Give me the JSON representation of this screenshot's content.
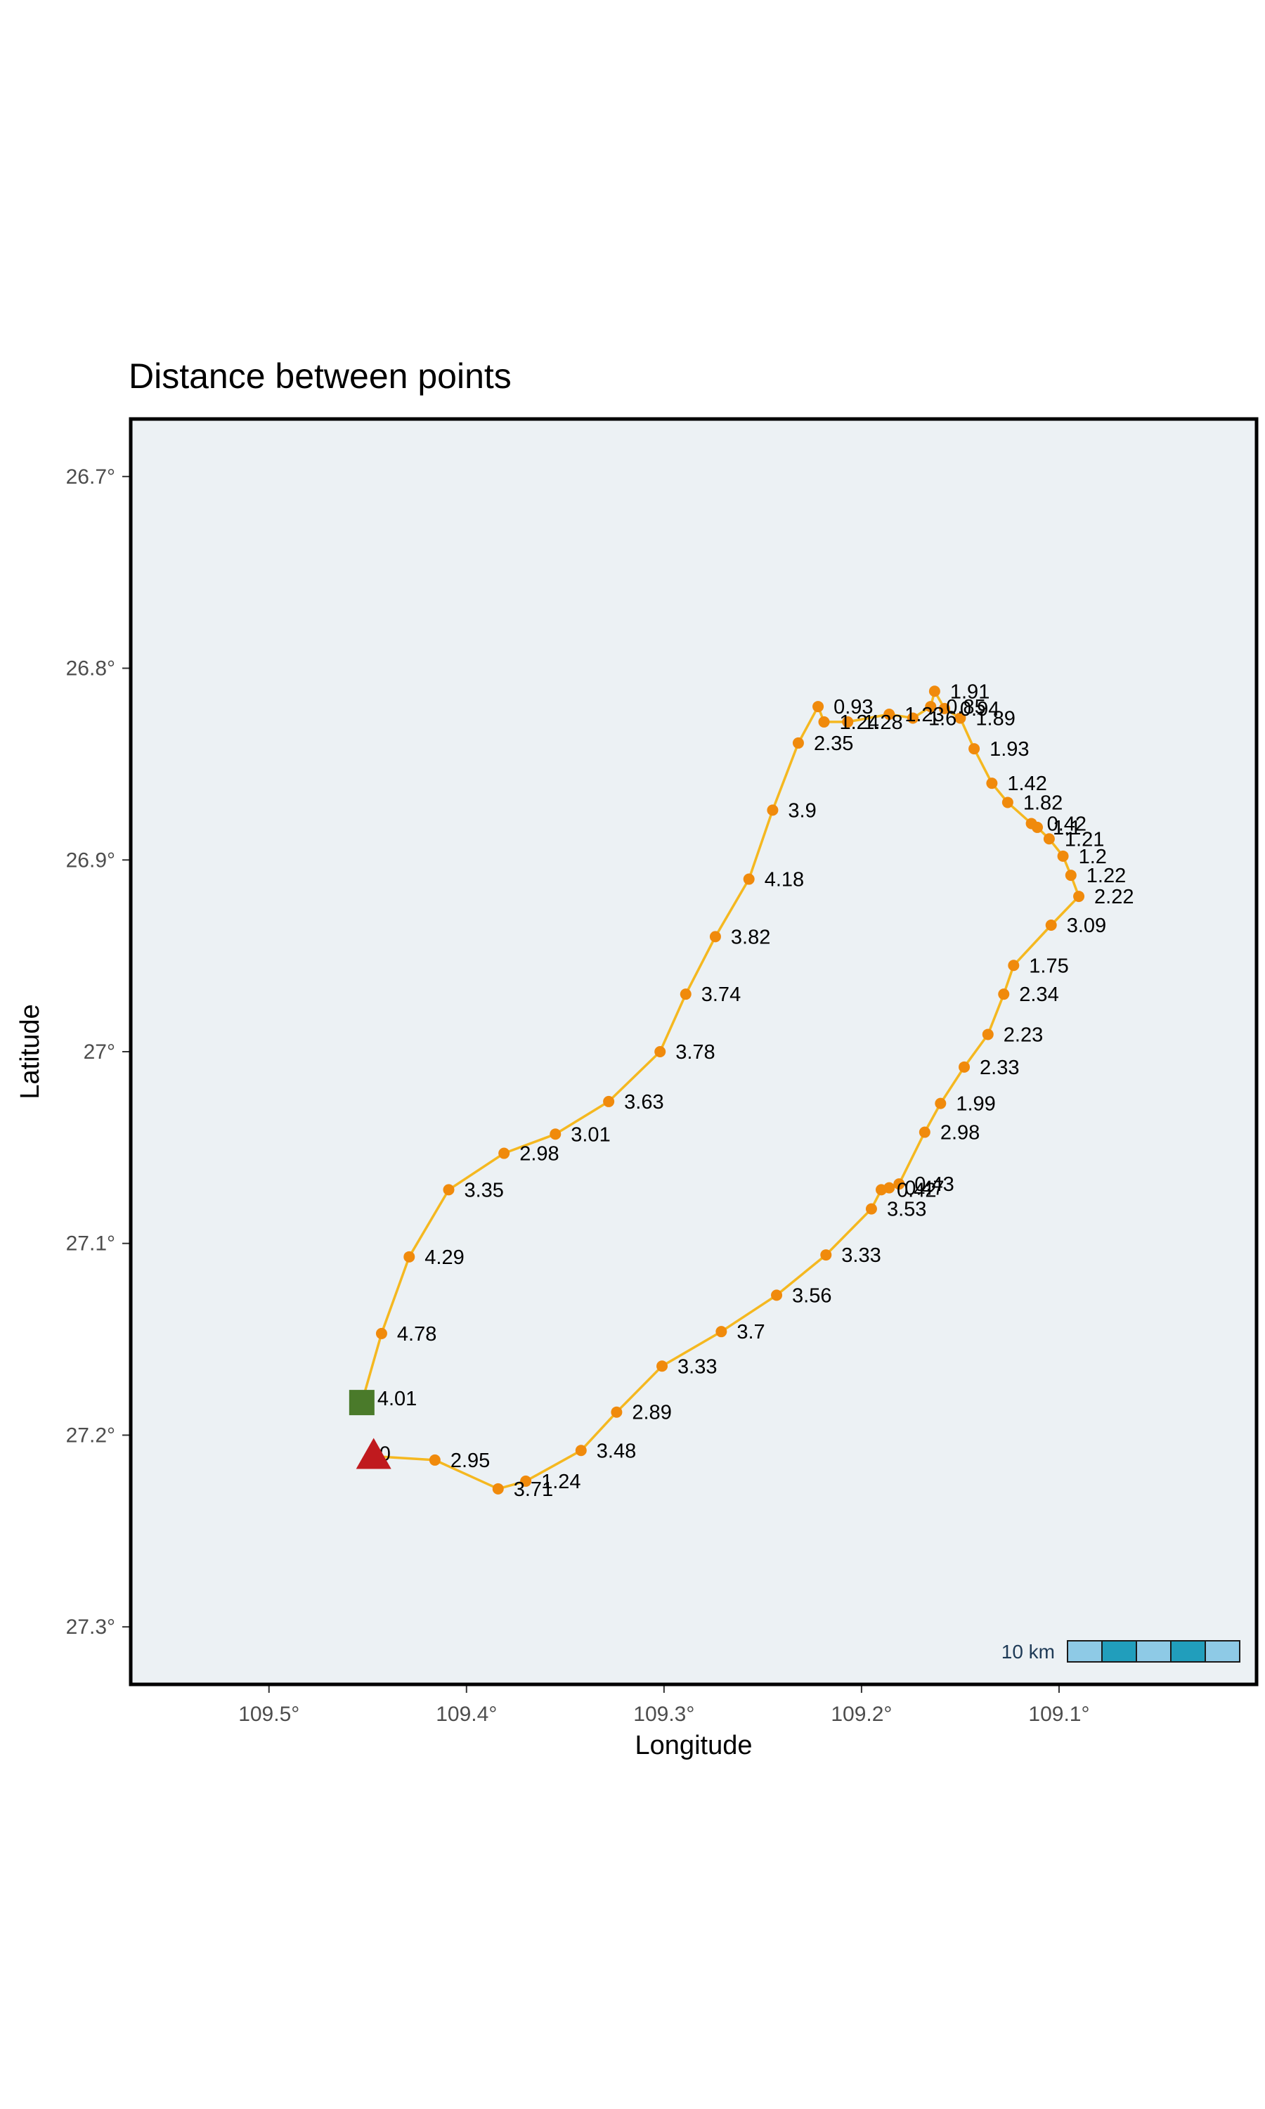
{
  "chart_data": {
    "type": "line",
    "title": "Distance between points",
    "xlabel": "Longitude",
    "ylabel": "Latitude",
    "xlim": [
      109.57,
      109.0
    ],
    "ylim": [
      26.67,
      27.33
    ],
    "x_reversed": true,
    "y_reversed": true,
    "x_ticks": [
      109.5,
      109.4,
      109.3,
      109.2,
      109.1
    ],
    "x_tick_labels": [
      "109.5°",
      "109.4°",
      "109.3°",
      "109.2°",
      "109.1°"
    ],
    "y_ticks": [
      26.7,
      26.8,
      26.9,
      27.0,
      27.1,
      27.2,
      27.3
    ],
    "y_tick_labels": [
      "26.7°",
      "26.8°",
      "26.9°",
      "27°",
      "27.1°",
      "27.2°",
      "27.3°"
    ],
    "grid": false,
    "line_color": "#f5b820",
    "point_color": "#f08a0c",
    "start_marker_color": "#c01a1e",
    "end_marker_color": "#4a7a2a",
    "background_color": "#ecf1f4",
    "scalebar": {
      "label": "10 km",
      "segment_colors": [
        "#8ecae6",
        "#219ebc",
        "#8ecae6",
        "#219ebc",
        "#8ecae6"
      ],
      "placement": "bottom-right"
    },
    "start": {
      "lon": 109.447,
      "lat": 27.211,
      "label": "0"
    },
    "end": {
      "lon": 109.453,
      "lat": 27.183,
      "label": "4.01"
    },
    "points": [
      {
        "lon": 109.416,
        "lat": 27.213,
        "label": "2.95"
      },
      {
        "lon": 109.384,
        "lat": 27.228,
        "label": "3.71"
      },
      {
        "lon": 109.37,
        "lat": 27.224,
        "label": "1.24"
      },
      {
        "lon": 109.342,
        "lat": 27.208,
        "label": "3.48"
      },
      {
        "lon": 109.324,
        "lat": 27.188,
        "label": "2.89"
      },
      {
        "lon": 109.301,
        "lat": 27.164,
        "label": "3.33"
      },
      {
        "lon": 109.271,
        "lat": 27.146,
        "label": "3.7"
      },
      {
        "lon": 109.243,
        "lat": 27.127,
        "label": "3.56"
      },
      {
        "lon": 109.218,
        "lat": 27.106,
        "label": "3.33"
      },
      {
        "lon": 109.195,
        "lat": 27.082,
        "label": "3.53"
      },
      {
        "lon": 109.19,
        "lat": 27.072,
        "label": "0.42"
      },
      {
        "lon": 109.186,
        "lat": 27.071,
        "label": "0.47"
      },
      {
        "lon": 109.181,
        "lat": 27.069,
        "label": "0.43"
      },
      {
        "lon": 109.168,
        "lat": 27.042,
        "label": "2.98"
      },
      {
        "lon": 109.16,
        "lat": 27.027,
        "label": "1.99"
      },
      {
        "lon": 109.148,
        "lat": 27.008,
        "label": "2.33"
      },
      {
        "lon": 109.136,
        "lat": 26.991,
        "label": "2.23"
      },
      {
        "lon": 109.128,
        "lat": 26.97,
        "label": "2.34"
      },
      {
        "lon": 109.123,
        "lat": 26.955,
        "label": "1.75"
      },
      {
        "lon": 109.104,
        "lat": 26.934,
        "label": "3.09"
      },
      {
        "lon": 109.09,
        "lat": 26.919,
        "label": "2.22"
      },
      {
        "lon": 109.094,
        "lat": 26.908,
        "label": "1.22"
      },
      {
        "lon": 109.098,
        "lat": 26.898,
        "label": "1.2"
      },
      {
        "lon": 109.105,
        "lat": 26.889,
        "label": "1.21"
      },
      {
        "lon": 109.111,
        "lat": 26.883,
        "label": "1.1"
      },
      {
        "lon": 109.114,
        "lat": 26.881,
        "label": "0.42"
      },
      {
        "lon": 109.126,
        "lat": 26.87,
        "label": "1.82"
      },
      {
        "lon": 109.134,
        "lat": 26.86,
        "label": "1.42"
      },
      {
        "lon": 109.143,
        "lat": 26.842,
        "label": "1.93"
      },
      {
        "lon": 109.15,
        "lat": 26.826,
        "label": "1.89"
      },
      {
        "lon": 109.158,
        "lat": 26.821,
        "label": "0.94"
      },
      {
        "lon": 109.163,
        "lat": 26.812,
        "label": "1.91"
      },
      {
        "lon": 109.165,
        "lat": 26.82,
        "label": "0.85"
      },
      {
        "lon": 109.174,
        "lat": 26.826,
        "label": "1.6"
      },
      {
        "lon": 109.186,
        "lat": 26.824,
        "label": "1.23"
      },
      {
        "lon": 109.207,
        "lat": 26.828,
        "label": "1.28"
      },
      {
        "lon": 109.219,
        "lat": 26.828,
        "label": "1.24"
      },
      {
        "lon": 109.222,
        "lat": 26.82,
        "label": "0.93"
      },
      {
        "lon": 109.232,
        "lat": 26.839,
        "label": "2.35"
      },
      {
        "lon": 109.245,
        "lat": 26.874,
        "label": "3.9"
      },
      {
        "lon": 109.257,
        "lat": 26.91,
        "label": "4.18"
      },
      {
        "lon": 109.274,
        "lat": 26.94,
        "label": "3.82"
      },
      {
        "lon": 109.289,
        "lat": 26.97,
        "label": "3.74"
      },
      {
        "lon": 109.302,
        "lat": 27.0,
        "label": "3.78"
      },
      {
        "lon": 109.328,
        "lat": 27.026,
        "label": "3.63"
      },
      {
        "lon": 109.355,
        "lat": 27.043,
        "label": "3.01"
      },
      {
        "lon": 109.381,
        "lat": 27.053,
        "label": "2.98"
      },
      {
        "lon": 109.409,
        "lat": 27.072,
        "label": "3.35"
      },
      {
        "lon": 109.429,
        "lat": 27.107,
        "label": "4.29"
      },
      {
        "lon": 109.443,
        "lat": 27.147,
        "label": "4.78"
      }
    ]
  }
}
